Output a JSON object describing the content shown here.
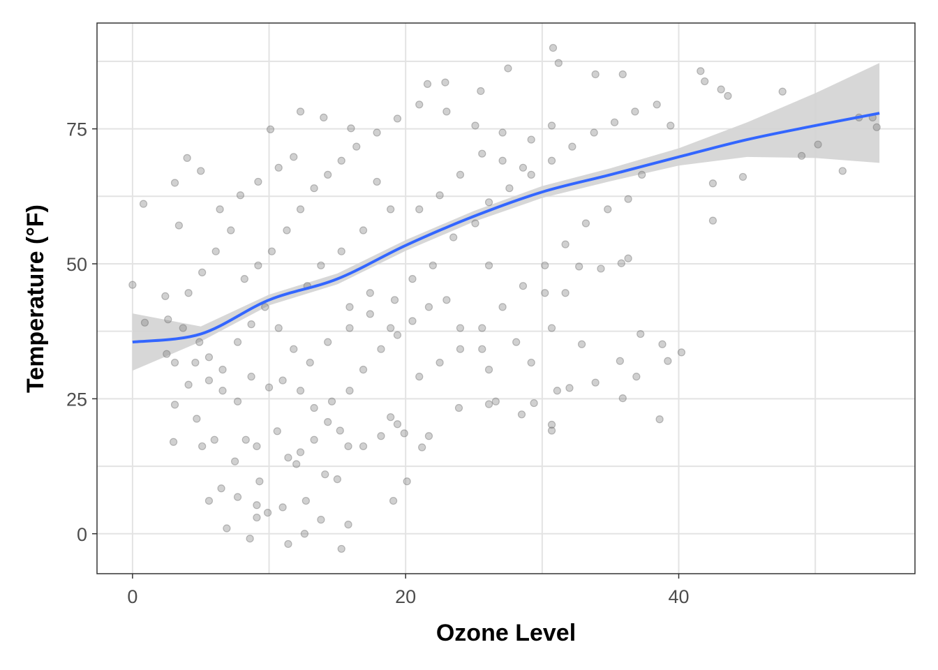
{
  "chart_data": {
    "type": "scatter",
    "title": "",
    "xlabel": "Ozone Level",
    "ylabel": "Temperature (°F)",
    "xlim": [
      -2.6,
      57.3
    ],
    "ylim": [
      -7.4,
      94.6
    ],
    "xticks": [
      0,
      20,
      40
    ],
    "xtick_labels": [
      "0",
      "20",
      "40"
    ],
    "yticks": [
      0,
      25,
      50,
      75
    ],
    "ytick_labels": [
      "0",
      "25",
      "50",
      "75"
    ],
    "grid": true,
    "legend": "none",
    "colors": {
      "points": "#6e6e6e",
      "smooth": "#3366ff",
      "band": "#d3d3d3"
    },
    "points_note_sampled": true,
    "points": [
      [
        0,
        46.1
      ],
      [
        0.8,
        61.1
      ],
      [
        0.9,
        39.1
      ],
      [
        2.4,
        44
      ],
      [
        3.1,
        65
      ],
      [
        3,
        17
      ],
      [
        4,
        69.6
      ],
      [
        3.4,
        57.1
      ],
      [
        5,
        67.2
      ],
      [
        5.1,
        16.2
      ],
      [
        5.6,
        6.1
      ],
      [
        6.9,
        1
      ],
      [
        8.6,
        -0.9
      ],
      [
        11.4,
        -1.9
      ],
      [
        12.6,
        0
      ],
      [
        15.3,
        -2.8
      ],
      [
        15.8,
        1.7
      ],
      [
        15,
        10.1
      ],
      [
        20.1,
        9.7
      ],
      [
        19.1,
        6.1
      ],
      [
        10.1,
        74.9
      ],
      [
        12.3,
        78.2
      ],
      [
        14,
        77.1
      ],
      [
        16,
        75.1
      ],
      [
        21.6,
        83.3
      ],
      [
        22.9,
        83.6
      ],
      [
        25.5,
        82
      ],
      [
        27.5,
        86.2
      ],
      [
        30.8,
        90
      ],
      [
        31.2,
        87.2
      ],
      [
        33.9,
        85.1
      ],
      [
        35.9,
        85.1
      ],
      [
        41.6,
        85.7
      ],
      [
        41.9,
        83.8
      ],
      [
        43.1,
        82.3
      ],
      [
        43.6,
        81.1
      ],
      [
        47.6,
        81.9
      ],
      [
        52,
        67.2
      ],
      [
        50.2,
        72.1
      ],
      [
        49,
        70
      ],
      [
        42.5,
        64.9
      ],
      [
        42.5,
        58
      ],
      [
        44.7,
        66.1
      ],
      [
        54.5,
        75.3
      ],
      [
        53.2,
        77.1
      ],
      [
        54.2,
        77.1
      ],
      [
        40.2,
        33.6
      ],
      [
        38.6,
        21.2
      ],
      [
        38.8,
        35.1
      ],
      [
        39.2,
        32
      ],
      [
        37.2,
        37
      ],
      [
        36.9,
        29.1
      ],
      [
        35.9,
        25.1
      ],
      [
        35.7,
        32
      ],
      [
        33.9,
        28
      ],
      [
        32.9,
        35.1
      ],
      [
        32,
        27
      ],
      [
        31.1,
        26.5
      ],
      [
        30.7,
        20.2
      ],
      [
        30.7,
        19.1
      ],
      [
        28.5,
        22.1
      ],
      [
        29.4,
        24.2
      ],
      [
        26.1,
        24
      ],
      [
        26.6,
        24.5
      ],
      [
        23.9,
        23.3
      ],
      [
        21.7,
        18.1
      ],
      [
        21.2,
        16
      ],
      [
        19.9,
        18.6
      ],
      [
        19.4,
        20.3
      ],
      [
        18.9,
        21.6
      ],
      [
        18.2,
        18.1
      ],
      [
        16.9,
        16.2
      ],
      [
        15.8,
        16.2
      ],
      [
        15.2,
        19.1
      ],
      [
        14.3,
        20.7
      ],
      [
        13.3,
        17.4
      ],
      [
        12.3,
        15.1
      ],
      [
        11.4,
        14.1
      ],
      [
        10.6,
        19
      ],
      [
        9.1,
        16.2
      ],
      [
        8.3,
        17.4
      ],
      [
        7.5,
        13.4
      ],
      [
        7.7,
        6.8
      ],
      [
        9.1,
        5.3
      ],
      [
        9.1,
        3
      ],
      [
        9.9,
        3.9
      ],
      [
        11,
        4.9
      ],
      [
        12.7,
        6.1
      ],
      [
        13.8,
        2.6
      ],
      [
        14.1,
        11
      ],
      [
        12,
        12.9
      ],
      [
        9.3,
        9.7
      ],
      [
        6.5,
        8.4
      ],
      [
        6,
        17.4
      ],
      [
        4.7,
        21.3
      ],
      [
        3.1,
        23.9
      ],
      [
        4.1,
        27.6
      ],
      [
        3.1,
        31.7
      ],
      [
        2.5,
        33.3
      ],
      [
        2.6,
        39.7
      ],
      [
        3.7,
        38.1
      ],
      [
        4.9,
        35.5
      ],
      [
        5.6,
        32.7
      ],
      [
        6.6,
        30.4
      ],
      [
        7.7,
        35.5
      ],
      [
        8.7,
        38.8
      ],
      [
        9.7,
        42
      ],
      [
        10.7,
        38.1
      ],
      [
        11.8,
        34.2
      ],
      [
        13,
        31.7
      ],
      [
        14.3,
        35.5
      ],
      [
        15.9,
        38.1
      ],
      [
        17.4,
        40.7
      ],
      [
        19.2,
        43.3
      ],
      [
        20.5,
        47.2
      ],
      [
        22,
        49.7
      ],
      [
        23.5,
        54.9
      ],
      [
        25.1,
        57.5
      ],
      [
        26.1,
        61.4
      ],
      [
        27.6,
        64
      ],
      [
        29.2,
        66.5
      ],
      [
        30.7,
        69.1
      ],
      [
        32.2,
        71.7
      ],
      [
        33.8,
        74.3
      ],
      [
        35.3,
        76.2
      ],
      [
        36.8,
        78.2
      ],
      [
        38.4,
        79.5
      ],
      [
        39.4,
        75.6
      ],
      [
        37.3,
        66.5
      ],
      [
        36.3,
        62
      ],
      [
        34.8,
        60.1
      ],
      [
        33.2,
        57.5
      ],
      [
        31.7,
        53.6
      ],
      [
        30.2,
        49.7
      ],
      [
        28.6,
        45.9
      ],
      [
        27.1,
        42
      ],
      [
        25.6,
        38.1
      ],
      [
        24,
        34.2
      ],
      [
        22.5,
        31.7
      ],
      [
        21,
        29.1
      ],
      [
        19.4,
        36.8
      ],
      [
        18.2,
        34.2
      ],
      [
        16.9,
        30.4
      ],
      [
        15.9,
        26.5
      ],
      [
        14.6,
        24.5
      ],
      [
        13.3,
        23.3
      ],
      [
        12.3,
        26.5
      ],
      [
        11,
        28.4
      ],
      [
        10,
        27.1
      ],
      [
        8.7,
        29.1
      ],
      [
        7.7,
        24.5
      ],
      [
        6.6,
        26.5
      ],
      [
        5.6,
        28.4
      ],
      [
        4.6,
        31.7
      ],
      [
        8.2,
        47.2
      ],
      [
        9.2,
        49.7
      ],
      [
        10.2,
        52.3
      ],
      [
        11.3,
        56.2
      ],
      [
        12.3,
        60.1
      ],
      [
        13.3,
        64
      ],
      [
        14.3,
        66.5
      ],
      [
        15.3,
        69.1
      ],
      [
        16.4,
        71.7
      ],
      [
        17.9,
        74.3
      ],
      [
        19.4,
        76.9
      ],
      [
        21,
        79.5
      ],
      [
        23,
        78.2
      ],
      [
        25.1,
        75.6
      ],
      [
        27.1,
        74.3
      ],
      [
        29.2,
        73
      ],
      [
        30.7,
        75.6
      ],
      [
        7.2,
        56.2
      ],
      [
        6.1,
        52.3
      ],
      [
        5.1,
        48.4
      ],
      [
        4.1,
        44.6
      ],
      [
        6.4,
        60.1
      ],
      [
        7.9,
        62.7
      ],
      [
        9.2,
        65.2
      ],
      [
        10.7,
        67.8
      ],
      [
        11.8,
        69.8
      ],
      [
        17.9,
        65.2
      ],
      [
        18.9,
        60.1
      ],
      [
        16.9,
        56.2
      ],
      [
        15.3,
        52.3
      ],
      [
        13.8,
        49.7
      ],
      [
        12.8,
        45.9
      ],
      [
        21,
        60.1
      ],
      [
        22.5,
        62.7
      ],
      [
        24,
        66.5
      ],
      [
        25.6,
        70.4
      ],
      [
        27.1,
        69.1
      ],
      [
        28.6,
        67.8
      ],
      [
        23,
        43.3
      ],
      [
        24,
        38.1
      ],
      [
        25.6,
        34.2
      ],
      [
        26.1,
        30.4
      ],
      [
        28.1,
        35.5
      ],
      [
        29.2,
        31.7
      ],
      [
        30.7,
        38.1
      ],
      [
        31.7,
        44.6
      ],
      [
        32.7,
        49.5
      ],
      [
        34.3,
        49.1
      ],
      [
        35.8,
        50.1
      ],
      [
        36.3,
        51
      ],
      [
        30.2,
        44.6
      ],
      [
        26.1,
        49.7
      ],
      [
        21.7,
        42
      ],
      [
        20.5,
        39.4
      ],
      [
        18.9,
        38.1
      ],
      [
        17.4,
        44.6
      ],
      [
        15.9,
        42
      ]
    ],
    "smooth": {
      "x": [
        0,
        5,
        10,
        15,
        20,
        25,
        30,
        35,
        40,
        45,
        50,
        54.7
      ],
      "y": [
        35.5,
        37,
        43.3,
        47.2,
        53.4,
        58.8,
        63.3,
        66.5,
        69.8,
        73,
        75.6,
        77.9
      ],
      "lower": [
        30.2,
        35.6,
        42.3,
        46.2,
        52.4,
        57.8,
        62.2,
        65.3,
        68.2,
        69.8,
        69.6,
        68.7
      ],
      "upper": [
        40.8,
        38.4,
        44.3,
        48.2,
        54.4,
        59.8,
        64.4,
        67.7,
        71.4,
        76.2,
        81.6,
        87.2
      ]
    }
  }
}
